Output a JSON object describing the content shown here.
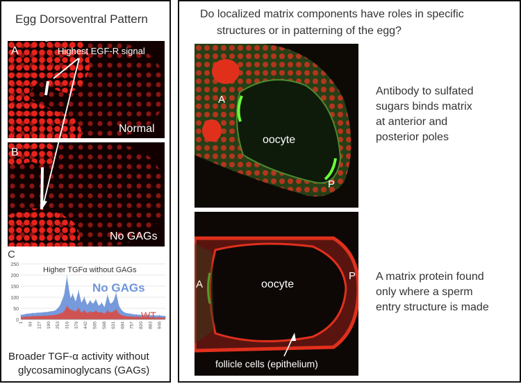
{
  "left_panel": {
    "title": "Egg Dorsoventral Pattern",
    "panel_a": {
      "letter": "A",
      "signal_label": "Highest EGF-R signal",
      "caption": "Normal"
    },
    "panel_b": {
      "letter": "B",
      "caption": "No GAGs"
    },
    "panel_c": {
      "letter": "C",
      "chart_title": "Higher TGFα without GAGs",
      "caption_line1": "Broader TGF-α activity without",
      "caption_line2": "glycosaminoglycans (GAGs)"
    }
  },
  "right_panel": {
    "question_line1": "Do localized matrix components have roles in specific",
    "question_line2": "structures or in patterning of the egg?",
    "image_top": {
      "label_a": "A",
      "label_p": "P",
      "center_label": "oocyte"
    },
    "desc_top": "Antibody to sulfated\nsugars binds matrix\nat anterior and\nposterior poles",
    "image_bottom": {
      "label_a": "A",
      "label_p": "P",
      "center_label": "oocyte",
      "cells_label": "follicle cells (epithelium)"
    },
    "desc_bottom": "A matrix protein found\nonly where a sperm\nentry structure is made"
  },
  "chart_data": {
    "type": "area",
    "title": "Higher TGFα without GAGs",
    "ylim": [
      0,
      250
    ],
    "y_ticks": [
      0,
      50,
      100,
      150,
      200,
      250
    ],
    "x_ticks": [
      "1",
      "64",
      "127",
      "190",
      "253",
      "316",
      "379",
      "442",
      "505",
      "568",
      "631",
      "694",
      "757",
      "820",
      "883",
      "946"
    ],
    "x_range": [
      1,
      1000
    ],
    "grid": true,
    "series": [
      {
        "name": "No GAGs",
        "color": "#6f95d9",
        "x": [
          1,
          40,
          80,
          120,
          160,
          200,
          240,
          270,
          300,
          320,
          330,
          345,
          360,
          380,
          400,
          420,
          440,
          460,
          480,
          500,
          520,
          540,
          560,
          580,
          600,
          620,
          640,
          660,
          680,
          700,
          720,
          760,
          800,
          840,
          880,
          920,
          960,
          1000
        ],
        "values": [
          20,
          25,
          28,
          30,
          32,
          35,
          40,
          60,
          110,
          195,
          150,
          95,
          115,
          80,
          130,
          75,
          100,
          65,
          85,
          70,
          90,
          60,
          75,
          55,
          110,
          70,
          80,
          120,
          60,
          40,
          30,
          25,
          22,
          20,
          20,
          18,
          18,
          15
        ]
      },
      {
        "name": "WT",
        "color": "#e0463c",
        "x": [
          1,
          40,
          80,
          120,
          160,
          200,
          240,
          270,
          300,
          320,
          340,
          360,
          380,
          400,
          420,
          440,
          460,
          480,
          500,
          520,
          540,
          560,
          580,
          600,
          620,
          640,
          660,
          680,
          700,
          720,
          760,
          800,
          840,
          880,
          920,
          960,
          1000
        ],
        "values": [
          10,
          12,
          14,
          15,
          16,
          18,
          20,
          25,
          35,
          60,
          45,
          40,
          35,
          50,
          30,
          40,
          28,
          35,
          32,
          38,
          30,
          32,
          25,
          40,
          30,
          35,
          45,
          25,
          18,
          15,
          12,
          12,
          10,
          10,
          9,
          9,
          8
        ]
      }
    ]
  }
}
